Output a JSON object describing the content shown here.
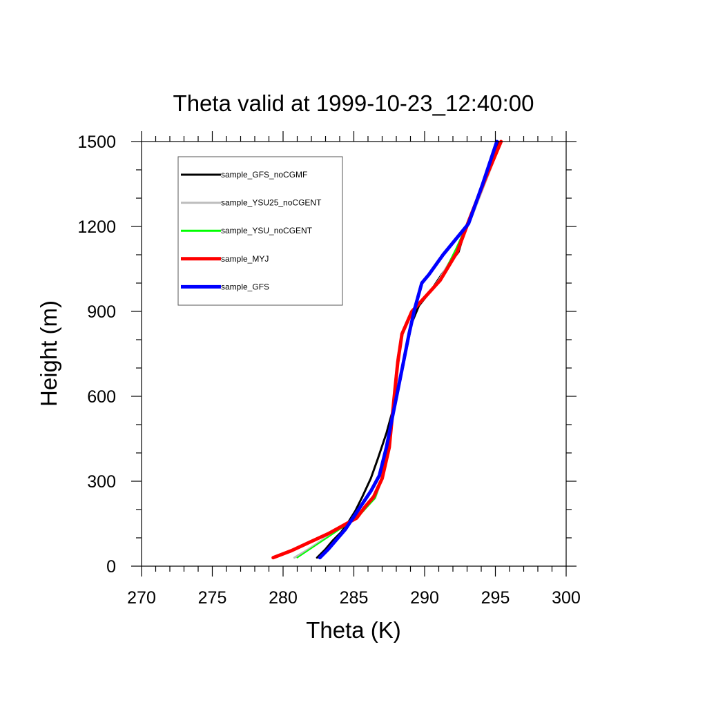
{
  "chart_data": {
    "type": "line",
    "title": "Theta valid at 1999-10-23_12:40:00",
    "xlabel": "Theta (K)",
    "ylabel": "Height (m)",
    "xlim": [
      270,
      300
    ],
    "ylim": [
      0,
      1500
    ],
    "xticks": [
      270,
      275,
      280,
      285,
      290,
      295,
      300
    ],
    "yticks": [
      0,
      300,
      600,
      900,
      1200,
      1500
    ],
    "x_minor_step": 1,
    "y_minor_step": 100,
    "grid": false,
    "legend_position": "top-left",
    "series": [
      {
        "name": "sample_GFS_noCGMF",
        "color": "#000000",
        "line_width": 3,
        "points": [
          [
            282.4,
            30
          ],
          [
            283.0,
            60
          ],
          [
            283.5,
            90
          ],
          [
            284.1,
            120
          ],
          [
            284.6,
            155
          ],
          [
            285.1,
            195
          ],
          [
            285.6,
            245
          ],
          [
            286.2,
            310
          ],
          [
            286.7,
            380
          ],
          [
            287.3,
            470
          ],
          [
            287.8,
            560
          ],
          [
            288.3,
            660
          ],
          [
            288.7,
            760
          ],
          [
            289.1,
            860
          ],
          [
            289.6,
            920
          ],
          [
            290.4,
            970
          ],
          [
            291.2,
            1030
          ],
          [
            292.4,
            1110
          ],
          [
            293.0,
            1210
          ],
          [
            294.1,
            1350
          ],
          [
            295.2,
            1500
          ]
        ]
      },
      {
        "name": "sample_YSU25_noCGENT",
        "color": "#bdbdbd",
        "line_width": 3,
        "points": [
          [
            280.8,
            30
          ],
          [
            281.8,
            60
          ],
          [
            282.7,
            90
          ],
          [
            283.6,
            120
          ],
          [
            284.5,
            150
          ],
          [
            285.5,
            190
          ],
          [
            286.5,
            240
          ],
          [
            287.0,
            310
          ],
          [
            287.5,
            420
          ],
          [
            287.7,
            530
          ],
          [
            287.9,
            640
          ],
          [
            288.1,
            740
          ],
          [
            288.4,
            820
          ],
          [
            289.1,
            900
          ],
          [
            290.2,
            960
          ],
          [
            291.0,
            1010
          ],
          [
            292.3,
            1120
          ],
          [
            293.3,
            1230
          ],
          [
            294.4,
            1370
          ],
          [
            295.4,
            1500
          ]
        ]
      },
      {
        "name": "sample_YSU_noCGENT",
        "color": "#00ff00",
        "line_width": 2,
        "points": [
          [
            281.0,
            30
          ],
          [
            281.9,
            60
          ],
          [
            282.8,
            90
          ],
          [
            283.7,
            120
          ],
          [
            284.6,
            150
          ],
          [
            285.6,
            190
          ],
          [
            286.5,
            240
          ],
          [
            287.0,
            310
          ],
          [
            287.5,
            420
          ],
          [
            287.7,
            530
          ],
          [
            287.9,
            640
          ],
          [
            288.1,
            740
          ],
          [
            288.4,
            820
          ],
          [
            289.1,
            900
          ],
          [
            290.2,
            960
          ],
          [
            291.1,
            1010
          ],
          [
            292.2,
            1120
          ],
          [
            293.2,
            1230
          ],
          [
            294.3,
            1370
          ],
          [
            295.4,
            1500
          ]
        ]
      },
      {
        "name": "sample_MYJ",
        "color": "#ff0000",
        "line_width": 5,
        "points": [
          [
            279.3,
            30
          ],
          [
            280.6,
            55
          ],
          [
            281.9,
            85
          ],
          [
            283.2,
            115
          ],
          [
            284.3,
            145
          ],
          [
            285.2,
            170
          ],
          [
            285.8,
            210
          ],
          [
            286.4,
            245
          ],
          [
            287.0,
            310
          ],
          [
            287.5,
            420
          ],
          [
            287.7,
            520
          ],
          [
            287.9,
            620
          ],
          [
            288.1,
            720
          ],
          [
            288.4,
            820
          ],
          [
            289.1,
            900
          ],
          [
            290.2,
            960
          ],
          [
            291.1,
            1010
          ],
          [
            292.3,
            1110
          ],
          [
            293.2,
            1230
          ],
          [
            294.3,
            1370
          ],
          [
            295.4,
            1500
          ]
        ]
      },
      {
        "name": "sample_GFS",
        "color": "#0000ff",
        "line_width": 5,
        "points": [
          [
            282.6,
            30
          ],
          [
            283.2,
            60
          ],
          [
            283.8,
            95
          ],
          [
            284.4,
            130
          ],
          [
            285.0,
            175
          ],
          [
            285.6,
            220
          ],
          [
            286.2,
            265
          ],
          [
            286.8,
            320
          ],
          [
            287.3,
            420
          ],
          [
            287.7,
            520
          ],
          [
            288.1,
            620
          ],
          [
            288.5,
            720
          ],
          [
            288.9,
            820
          ],
          [
            289.3,
            910
          ],
          [
            289.8,
            1000
          ],
          [
            290.3,
            1030
          ],
          [
            291.3,
            1100
          ],
          [
            293.1,
            1210
          ],
          [
            294.1,
            1350
          ],
          [
            295.1,
            1500
          ]
        ]
      }
    ]
  }
}
